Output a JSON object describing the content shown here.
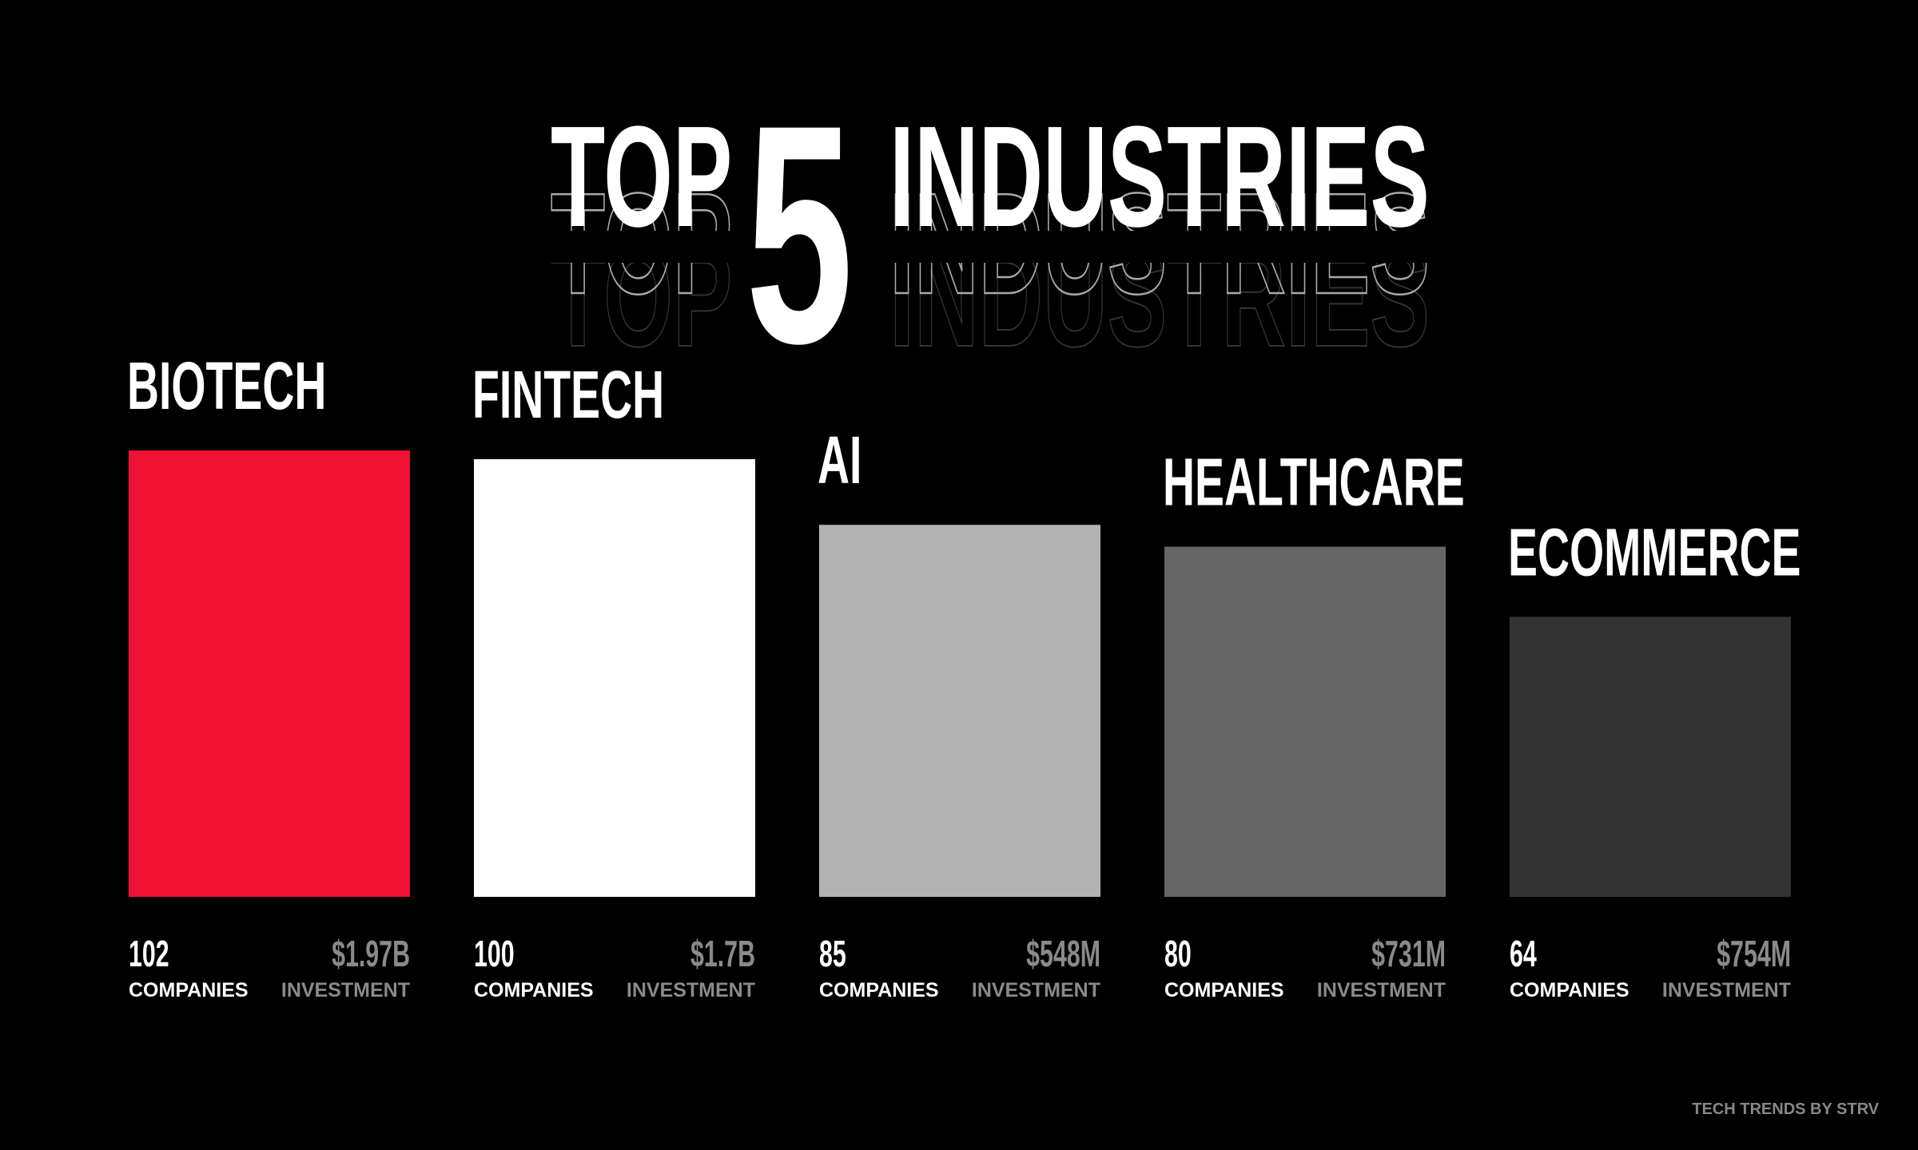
{
  "chart_data": {
    "type": "bar",
    "title": [
      "TOP",
      "5",
      "INDUSTRIES"
    ],
    "categories": [
      "BIOTECH",
      "FINTECH",
      "AI",
      "HEALTHCARE",
      "ECOMMERCE"
    ],
    "series": [
      {
        "name": "COMPANIES",
        "values": [
          102,
          100,
          85,
          80,
          64
        ],
        "colors": [
          "#ee1133",
          "#ffffff",
          "#b3b3b3",
          "#666666",
          "#333333"
        ]
      },
      {
        "name": "INVESTMENT",
        "values": [
          1970000000,
          1700000000,
          548000000,
          731000000,
          754000000
        ],
        "value_labels": [
          "$1.97B",
          "$1.7B",
          "$548M",
          "$731M",
          "$754M"
        ]
      }
    ],
    "footer": "TECH TRENDS BY STRV"
  }
}
